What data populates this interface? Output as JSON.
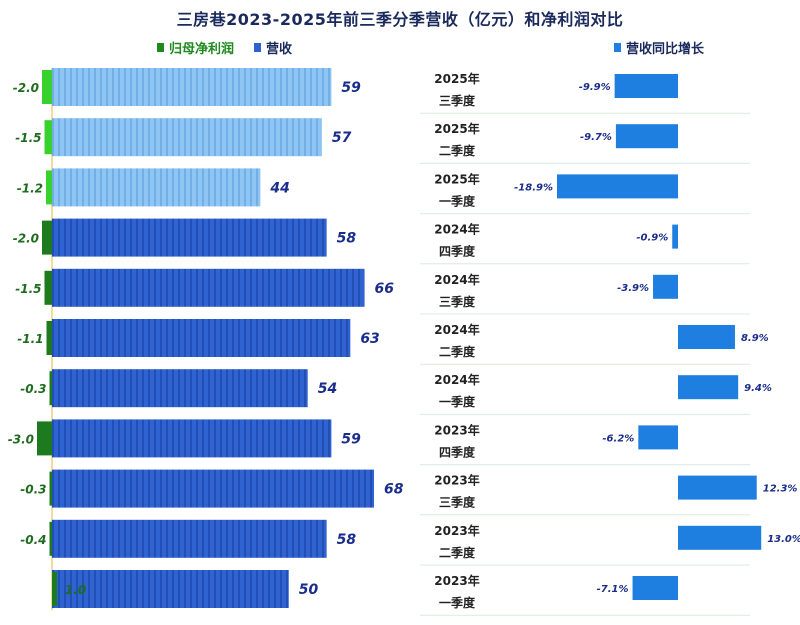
{
  "chart_data": {
    "type": "bar",
    "title": "三房巷2023-2025年前三季分季营收（亿元）和净利润对比",
    "legend": {
      "net_profit": "归母净利润",
      "revenue": "营收",
      "growth": "营收同比增长"
    },
    "categories": [
      {
        "year": "2025年",
        "quarter": "三季度"
      },
      {
        "year": "2025年",
        "quarter": "二季度"
      },
      {
        "year": "2025年",
        "quarter": "一季度"
      },
      {
        "year": "2024年",
        "quarter": "四季度"
      },
      {
        "year": "2024年",
        "quarter": "三季度"
      },
      {
        "year": "2024年",
        "quarter": "二季度"
      },
      {
        "year": "2024年",
        "quarter": "一季度"
      },
      {
        "year": "2023年",
        "quarter": "四季度"
      },
      {
        "year": "2023年",
        "quarter": "三季度"
      },
      {
        "year": "2023年",
        "quarter": "二季度"
      },
      {
        "year": "2023年",
        "quarter": "一季度"
      }
    ],
    "series": [
      {
        "name": "归母净利润",
        "values": [
          -2.0,
          -1.5,
          -1.2,
          -2.0,
          -1.5,
          -1.1,
          -0.3,
          -3.0,
          -0.3,
          -0.4,
          1.0
        ],
        "labels": [
          "-2.0",
          "-1.5",
          "-1.2",
          "-2.0",
          "-1.5",
          "-1.1",
          "-0.3",
          "-3.0",
          "-0.3",
          "-0.4",
          "1.0"
        ]
      },
      {
        "name": "营收",
        "values": [
          59,
          57,
          44,
          58,
          66,
          63,
          54,
          59,
          68,
          58,
          50
        ],
        "labels": [
          "59",
          "57",
          "44",
          "58",
          "66",
          "63",
          "54",
          "59",
          "68",
          "58",
          "50"
        ]
      },
      {
        "name": "营收同比增长",
        "values": [
          -9.9,
          -9.7,
          -18.9,
          -0.9,
          -3.9,
          8.9,
          9.4,
          -6.2,
          12.3,
          13.0,
          -7.1
        ],
        "labels": [
          "-9.9%",
          "-9.7%",
          "-18.9%",
          "-0.9%",
          "-3.9%",
          "8.9%",
          "9.4%",
          "-6.2%",
          "12.3%",
          "13.0%",
          "-7.1%"
        ]
      }
    ],
    "colors": {
      "revenue_light": "#8ec5f2",
      "revenue_dark": "#2f63d2",
      "net_light": "#38d12e",
      "net_dark": "#1e7a1e",
      "growth": "#1f7fe0",
      "title": "#1a2a5c"
    }
  }
}
